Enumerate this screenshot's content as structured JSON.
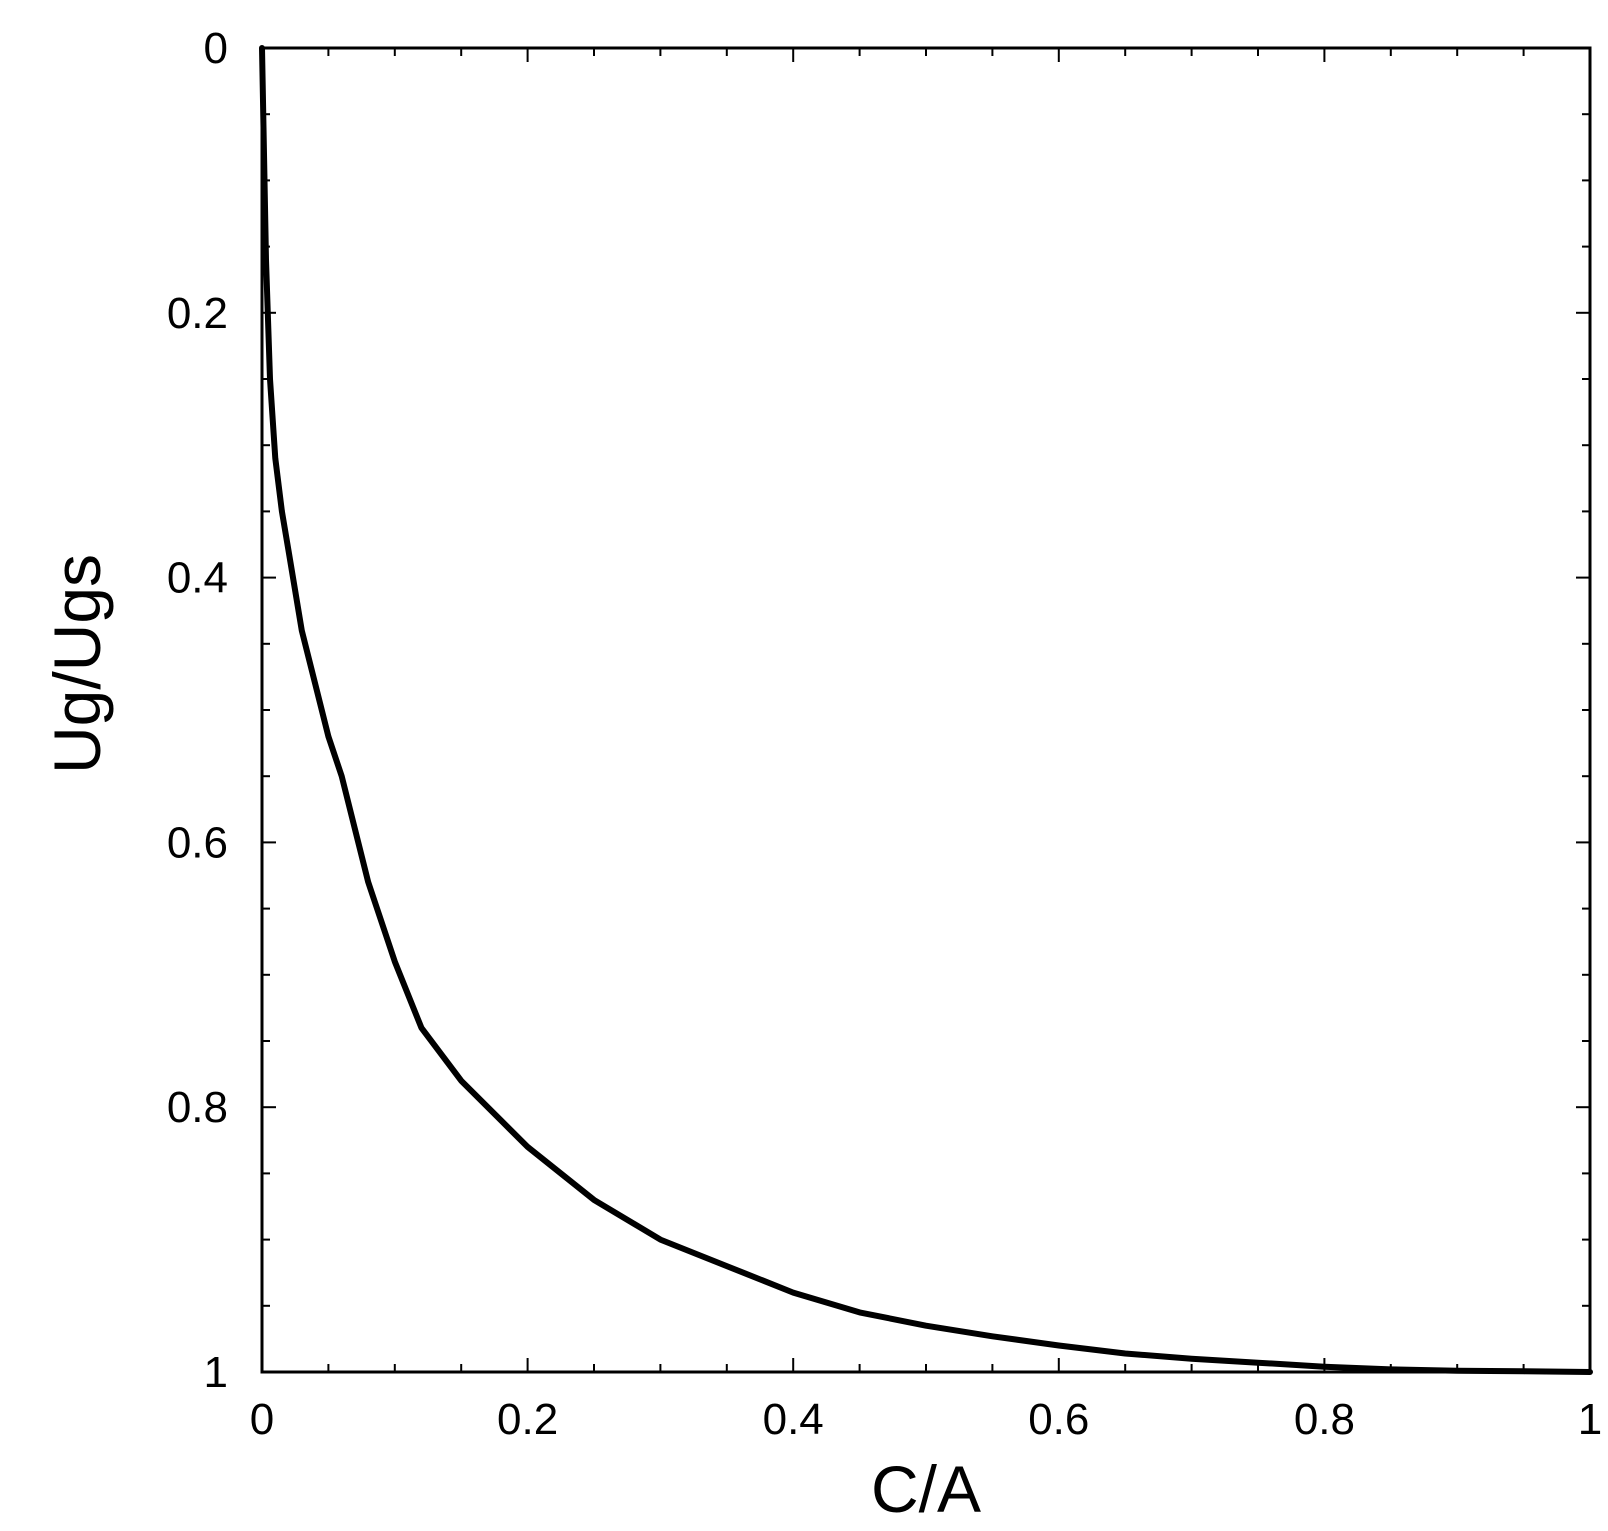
{
  "chart_data": {
    "type": "line",
    "title": "",
    "xlabel": "C/A",
    "ylabel": "Ug/Ugs",
    "xlim": [
      0,
      1
    ],
    "ylim": [
      0,
      1
    ],
    "y_inverted": true,
    "grid": false,
    "x_ticks": [
      "0",
      "0.2",
      "0.4",
      "0.6",
      "0.8",
      "1"
    ],
    "y_ticks": [
      "0",
      "0.2",
      "0.4",
      "0.6",
      "0.8",
      "1"
    ],
    "colors": {
      "line": "#000000",
      "frame": "#000000"
    },
    "series": [
      {
        "x": [
          0,
          0.003,
          0.006,
          0.01,
          0.015,
          0.02,
          0.03,
          0.04,
          0.05,
          0.06,
          0.08,
          0.1,
          0.12,
          0.15,
          0.18,
          0.2,
          0.25,
          0.3,
          0.35,
          0.4,
          0.45,
          0.5,
          0.55,
          0.6,
          0.65,
          0.7,
          0.75,
          0.8,
          0.85,
          0.9,
          0.95,
          1.0
        ],
        "y": [
          0,
          0.16,
          0.25,
          0.31,
          0.35,
          0.38,
          0.44,
          0.48,
          0.52,
          0.55,
          0.63,
          0.69,
          0.74,
          0.78,
          0.81,
          0.83,
          0.87,
          0.9,
          0.92,
          0.94,
          0.955,
          0.965,
          0.973,
          0.98,
          0.986,
          0.99,
          0.993,
          0.996,
          0.998,
          0.999,
          0.9995,
          1.0
        ]
      }
    ]
  }
}
